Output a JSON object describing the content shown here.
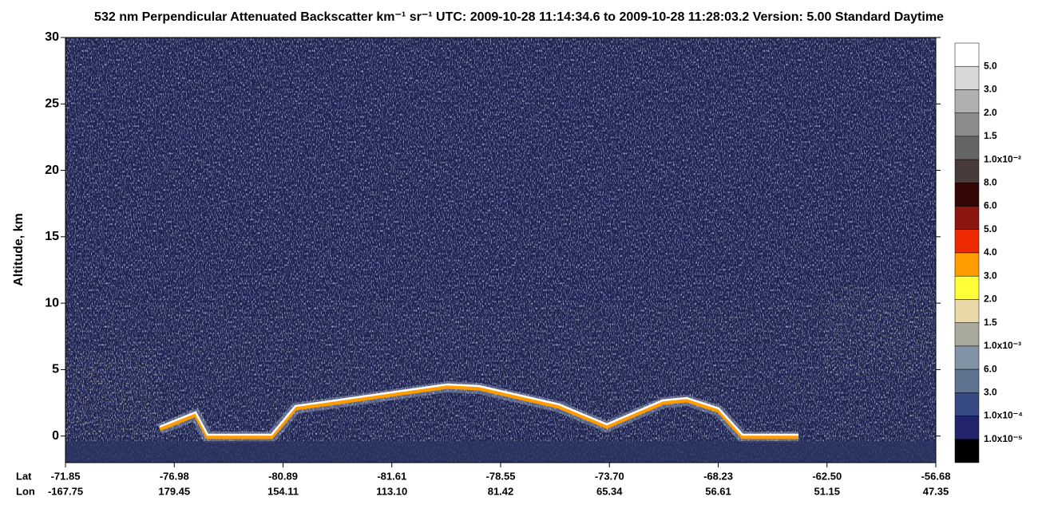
{
  "chart_data": {
    "type": "curtain",
    "title": "532 nm Perpendicular Attenuated Backscatter km⁻¹ sr⁻¹  UTC: 2009-10-28 11:14:34.6 to 2009-10-28 11:28:03.2  Version: 5.00 Standard Daytime",
    "y_label": "Altitude, km",
    "ylim": [
      -2,
      30
    ],
    "yticks": [
      0,
      5,
      10,
      15,
      20,
      25,
      30
    ],
    "x_rows": [
      "Lat",
      "Lon"
    ],
    "lat": [
      "-71.85",
      "-76.98",
      "-80.89",
      "-81.61",
      "-78.55",
      "-73.70",
      "-68.23",
      "-62.50",
      "-56.68"
    ],
    "lon": [
      "-167.75",
      "179.45",
      "154.11",
      "113.10",
      "81.42",
      "65.34",
      "56.61",
      "51.15",
      "47.35"
    ],
    "colorbar": {
      "colors": [
        "#ffffff",
        "#d8d8d8",
        "#b0b0b0",
        "#8c8c8c",
        "#656565",
        "#473c3a",
        "#350606",
        "#8c1610",
        "#ee2a00",
        "#ff9c00",
        "#ffff3a",
        "#e8d8a8",
        "#a9a99d",
        "#8193a4",
        "#5f7391",
        "#384a82",
        "#23246c",
        "#000000"
      ],
      "labels": [
        "5.0",
        "3.0",
        "2.0",
        "1.5",
        "1.0x10⁻²",
        "8.0",
        "6.0",
        "5.0",
        "4.0",
        "3.0",
        "2.0",
        "1.5",
        "1.0x10⁻³",
        "6.0",
        "3.0",
        "1.0x10⁻⁴",
        "1.0x10⁻⁵"
      ]
    }
  }
}
